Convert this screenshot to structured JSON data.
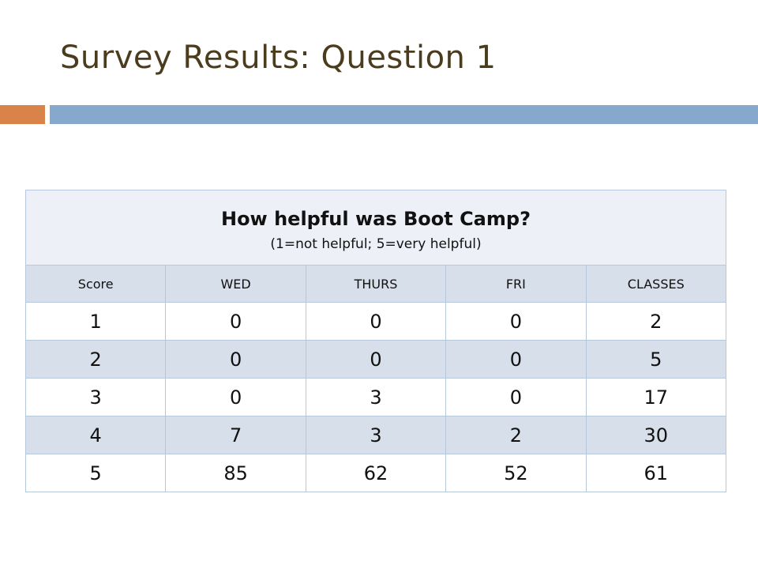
{
  "slide": {
    "title": "Survey Results: Question 1",
    "colors": {
      "title": "#4a3c1c",
      "accent": "#d9824a",
      "rule": "#86a8cc"
    }
  },
  "table": {
    "title": "How helpful was Boot Camp?",
    "subtitle": "(1=not helpful;  5=very helpful)",
    "headers": [
      "Score",
      "WED",
      "THURS",
      "FRI",
      "CLASSES"
    ],
    "rows": [
      [
        "1",
        "0",
        "0",
        "0",
        "2"
      ],
      [
        "2",
        "0",
        "0",
        "0",
        "5"
      ],
      [
        "3",
        "0",
        "3",
        "0",
        "17"
      ],
      [
        "4",
        "7",
        "3",
        "2",
        "30"
      ],
      [
        "5",
        "85",
        "62",
        "52",
        "61"
      ]
    ]
  },
  "chart_data": {
    "type": "table",
    "title": "How helpful was Boot Camp?",
    "subtitle": "(1=not helpful;  5=very helpful)",
    "columns": [
      "Score",
      "WED",
      "THURS",
      "FRI",
      "CLASSES"
    ],
    "rows": [
      [
        1,
        0,
        0,
        0,
        2
      ],
      [
        2,
        0,
        0,
        0,
        5
      ],
      [
        3,
        0,
        3,
        0,
        17
      ],
      [
        4,
        7,
        3,
        2,
        30
      ],
      [
        5,
        85,
        62,
        52,
        61
      ]
    ]
  }
}
